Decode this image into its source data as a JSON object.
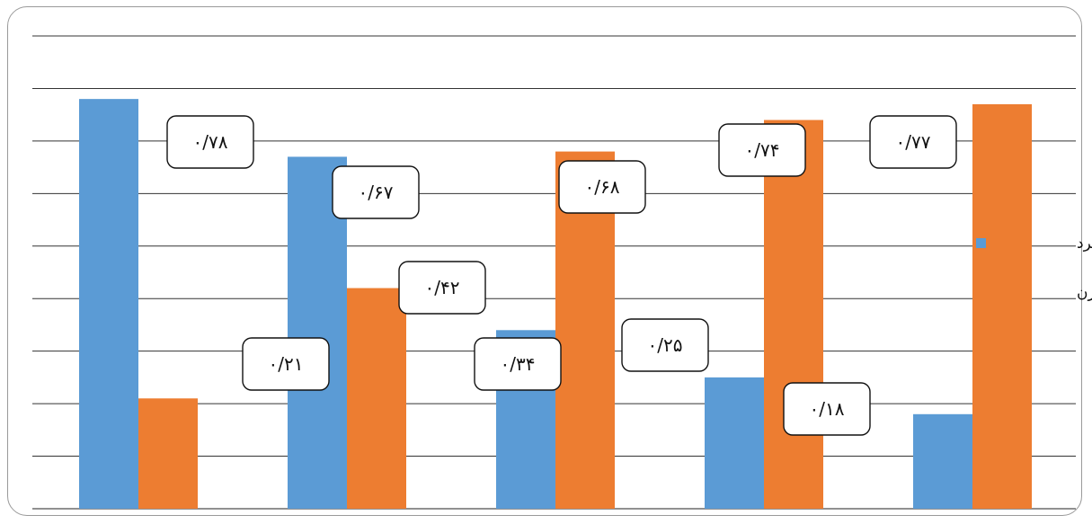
{
  "chart_data": {
    "type": "bar",
    "categories": [
      "",
      "",
      "",
      "",
      ""
    ],
    "series": [
      {
        "name": "معلمان مرد",
        "color": "#5b9bd5",
        "values": [
          0.78,
          0.67,
          0.34,
          0.25,
          0.18
        ],
        "labels": [
          "۰/۷۸",
          "۰/۶۷",
          "۰/۳۴",
          "۰/۲۵",
          "۰/۱۸"
        ]
      },
      {
        "name": "معلمان زن",
        "color": "#ed7d31",
        "values": [
          0.21,
          0.42,
          0.68,
          0.74,
          0.77
        ],
        "labels": [
          "۰/۲۱",
          "۰/۴۲",
          "۰/۶۸",
          "۰/۷۴",
          "۰/۷۷"
        ]
      }
    ],
    "ylim": [
      0,
      0.9
    ],
    "grid": true,
    "legend_position": "right"
  }
}
